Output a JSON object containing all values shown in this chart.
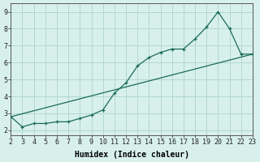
{
  "title": "",
  "xlabel": "Humidex (Indice chaleur)",
  "bg_color": "#d8f0ec",
  "plot_bg_color": "#d8f0ec",
  "grid_color": "#b0d8d0",
  "line_color": "#1a6b5a",
  "xlim": [
    2,
    23
  ],
  "ylim": [
    1.7,
    9.5
  ],
  "xticks": [
    2,
    3,
    4,
    5,
    6,
    7,
    8,
    9,
    10,
    11,
    12,
    13,
    14,
    15,
    16,
    17,
    18,
    19,
    20,
    21,
    22,
    23
  ],
  "yticks": [
    2,
    3,
    4,
    5,
    6,
    7,
    8,
    9
  ],
  "line1_x": [
    2,
    3,
    4,
    5,
    6,
    7,
    8,
    9,
    10,
    11,
    12,
    13,
    14,
    15,
    16,
    17,
    18,
    19,
    20,
    21,
    22,
    23
  ],
  "line1_y": [
    2.8,
    2.2,
    2.4,
    2.4,
    2.5,
    2.5,
    2.7,
    2.9,
    3.2,
    4.2,
    4.8,
    5.8,
    6.3,
    6.6,
    6.8,
    6.8,
    7.4,
    8.1,
    9.0,
    8.0,
    6.5,
    6.5
  ],
  "line2_x": [
    2,
    23
  ],
  "line2_y": [
    2.8,
    6.5
  ],
  "xlabel_fontsize": 7,
  "tick_fontsize": 6
}
